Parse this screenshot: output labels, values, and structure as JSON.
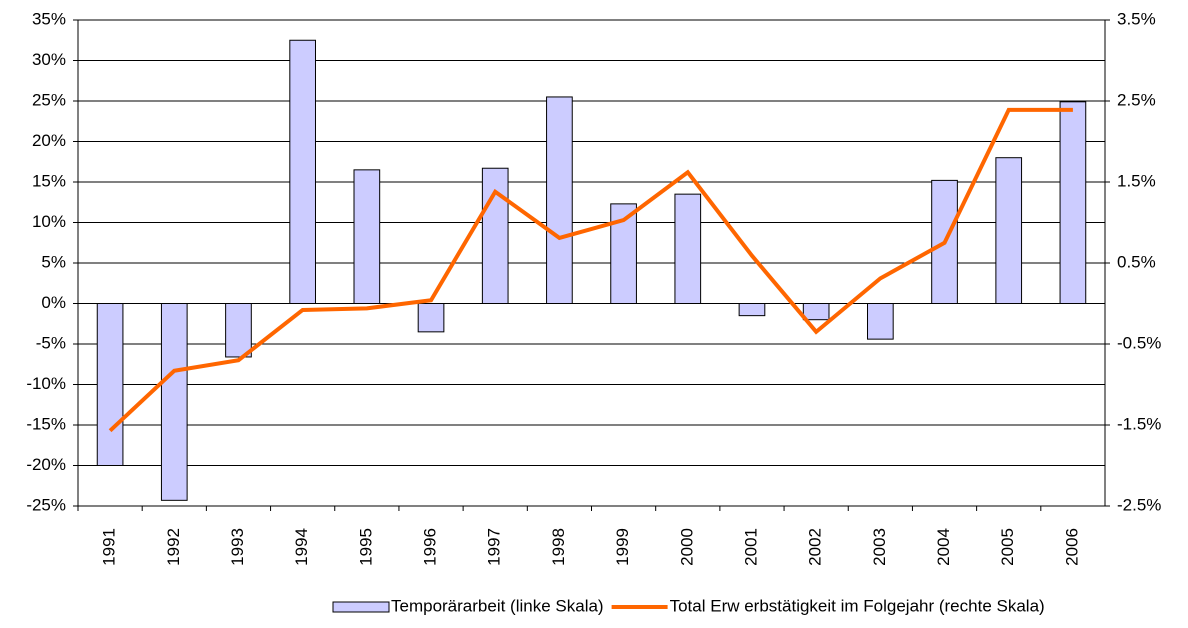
{
  "chart_data": {
    "type": "combo",
    "categories": [
      "1991",
      "1992",
      "1993",
      "1994",
      "1995",
      "1996",
      "1997",
      "1998",
      "1999",
      "2000",
      "2001",
      "2002",
      "2003",
      "2004",
      "2005",
      "2006"
    ],
    "series": [
      {
        "name": "Temporärarbeit (linke Skala)",
        "type": "bar",
        "color": "#ccccff",
        "axis": "y",
        "values": [
          -20,
          -24.3,
          -6.6,
          32.5,
          16.5,
          -3.5,
          16.7,
          25.5,
          12.3,
          13.5,
          -1.5,
          -2.0,
          -4.4,
          15.2,
          18.0,
          24.9
        ]
      },
      {
        "name": "Total Erw erbstätigkeit im Folgejahr (rechte Skala)",
        "type": "line",
        "color": "#ff6600",
        "axis": "y2",
        "values": [
          -1.57,
          -0.83,
          -0.7,
          -0.08,
          -0.06,
          0.04,
          1.38,
          0.81,
          1.03,
          1.62,
          0.59,
          -0.35,
          0.31,
          0.75,
          2.39,
          2.39
        ]
      }
    ],
    "ylim": [
      -25,
      35
    ],
    "yticks": [
      {
        "value": -25,
        "label": "-25%"
      },
      {
        "value": -20,
        "label": "-20%"
      },
      {
        "value": -15,
        "label": "-15%"
      },
      {
        "value": -10,
        "label": "-10%"
      },
      {
        "value": -5,
        "label": "-5%"
      },
      {
        "value": 0,
        "label": "0%"
      },
      {
        "value": 5,
        "label": "5%"
      },
      {
        "value": 10,
        "label": "10%"
      },
      {
        "value": 15,
        "label": "15%"
      },
      {
        "value": 20,
        "label": "20%"
      },
      {
        "value": 25,
        "label": "25%"
      },
      {
        "value": 30,
        "label": "30%"
      },
      {
        "value": 35,
        "label": "35%"
      }
    ],
    "y2lim": [
      -2.5,
      3.5
    ],
    "y2ticks": [
      {
        "value": -2.5,
        "label": "-2.5%"
      },
      {
        "value": -1.5,
        "label": "-1.5%"
      },
      {
        "value": -0.5,
        "label": "-0.5%"
      },
      {
        "value": 0.5,
        "label": "0.5%"
      },
      {
        "value": 1.5,
        "label": "1.5%"
      },
      {
        "value": 2.5,
        "label": "2.5%"
      },
      {
        "value": 3.5,
        "label": "3.5%"
      }
    ],
    "grid": true,
    "legend": "bottom"
  }
}
